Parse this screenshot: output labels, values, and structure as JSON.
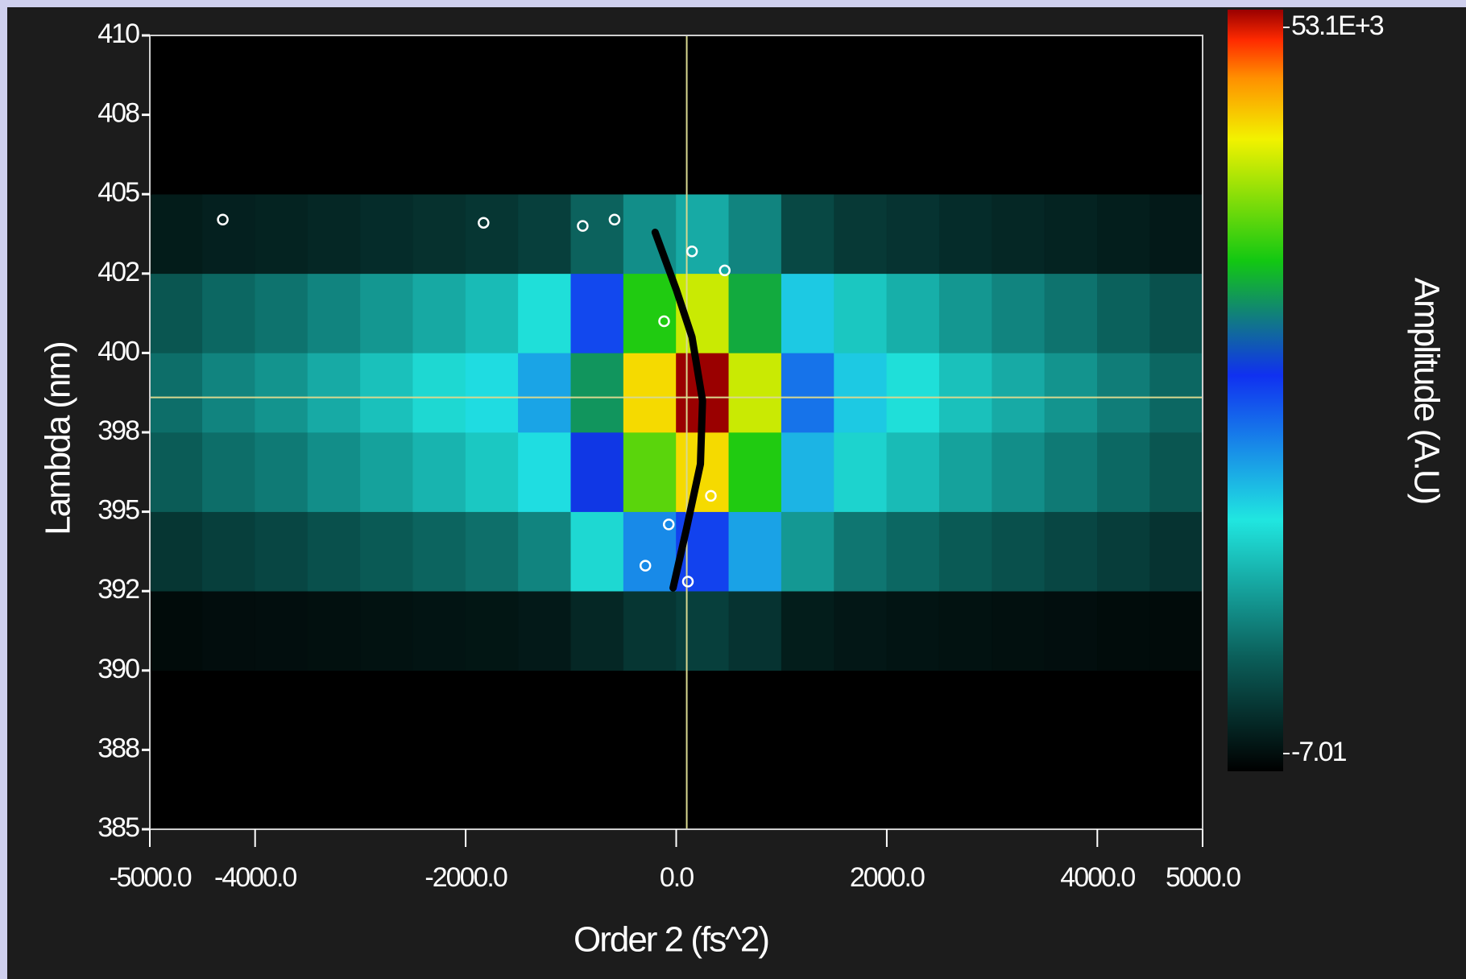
{
  "chart_data": {
    "type": "heatmap",
    "x_label": "Order 2 (fs^2)",
    "y_label": "Lambda (nm)",
    "colorbar_label": "Amplitude (A.U)",
    "xlim": [
      -5000,
      5000
    ],
    "ylim": [
      385,
      410
    ],
    "xticks": [
      {
        "value": -5000,
        "label": "-5000.0"
      },
      {
        "value": -4000,
        "label": "-4000.0"
      },
      {
        "value": -2000,
        "label": "-2000.0"
      },
      {
        "value": 0,
        "label": "0.0"
      },
      {
        "value": 2000,
        "label": "2000.0"
      },
      {
        "value": 4000,
        "label": "4000.0"
      },
      {
        "value": 5000,
        "label": "5000.0"
      }
    ],
    "yticks": [
      385,
      {
        "value": 387.5,
        "label": "388"
      },
      390,
      {
        "value": 392.5,
        "label": "392"
      },
      395,
      {
        "value": 397.5,
        "label": "398"
      },
      400,
      {
        "value": 402.5,
        "label": "402"
      },
      405,
      {
        "value": 407.5,
        "label": "408"
      },
      410
    ],
    "zlim": [
      -7.01,
      53100
    ],
    "cticks": [
      -7.01,
      {
        "value": 53100,
        "label": "53.1E+3"
      }
    ],
    "colormap": [
      [
        0,
        "#000000"
      ],
      [
        0.15,
        "#0b5f5a"
      ],
      [
        0.33,
        "#20e6e0"
      ],
      [
        0.52,
        "#1030f0"
      ],
      [
        0.67,
        "#12c812"
      ],
      [
        0.83,
        "#f2f200"
      ],
      [
        0.91,
        "#ff9000"
      ],
      [
        0.96,
        "#ff2a00"
      ],
      [
        1,
        "#9a0000"
      ]
    ],
    "x_edges": [
      -5000,
      -4500,
      -4000,
      -3500,
      -3000,
      -2500,
      -2000,
      -1500,
      -1000,
      -500,
      0,
      500,
      1000,
      1500,
      2000,
      2500,
      3000,
      3500,
      4000,
      4500,
      5000
    ],
    "y_edges": [
      385,
      387.5,
      390,
      392.5,
      395,
      397.5,
      400,
      402.5,
      405,
      407.5,
      410
    ],
    "z": [
      [
        0,
        0,
        0,
        0,
        0,
        0,
        0,
        0,
        0,
        0,
        0,
        0,
        0,
        0,
        0,
        0,
        0,
        0,
        0,
        0
      ],
      [
        0,
        0,
        0,
        0,
        0,
        0,
        0,
        0,
        0,
        0,
        0,
        0,
        0,
        0,
        0,
        0,
        0,
        0,
        0,
        0
      ],
      [
        900,
        1100,
        1200,
        1300,
        1500,
        1700,
        1800,
        2100,
        3300,
        4500,
        5300,
        4300,
        2400,
        1900,
        1700,
        1500,
        1300,
        1200,
        1000,
        900
      ],
      [
        4500,
        5300,
        5900,
        6700,
        7500,
        8300,
        9100,
        10600,
        16500,
        22600,
        26600,
        21300,
        12000,
        9600,
        8500,
        7500,
        6700,
        5900,
        5100,
        4300
      ],
      [
        7700,
        9000,
        9900,
        11300,
        12700,
        14000,
        15400,
        18000,
        28000,
        38300,
        45100,
        36100,
        20300,
        16200,
        14500,
        12700,
        11300,
        9900,
        8600,
        7200
      ],
      [
        9000,
        10600,
        11700,
        13300,
        14900,
        16500,
        18100,
        21200,
        32900,
        45100,
        53100,
        42500,
        23900,
        19100,
        17000,
        14900,
        13300,
        11700,
        10100,
        8500
      ],
      [
        7200,
        8500,
        9400,
        10600,
        11900,
        13200,
        14500,
        17000,
        26300,
        36100,
        42500,
        34000,
        19100,
        15300,
        13600,
        11900,
        10600,
        9400,
        8100,
        6800
      ],
      [
        2300,
        2700,
        2900,
        3300,
        3700,
        4100,
        4500,
        5300,
        8200,
        11300,
        13300,
        10600,
        6000,
        4800,
        4300,
        3700,
        3300,
        2900,
        2500,
        2100
      ],
      [
        0,
        0,
        0,
        0,
        0,
        0,
        0,
        0,
        0,
        0,
        0,
        0,
        0,
        0,
        0,
        0,
        0,
        0,
        0,
        0
      ],
      [
        0,
        0,
        0,
        0,
        0,
        0,
        0,
        0,
        0,
        0,
        0,
        0,
        0,
        0,
        0,
        0,
        0,
        0,
        0,
        0
      ]
    ],
    "curve": {
      "x": [
        -200,
        0,
        150,
        250,
        230,
        100,
        -30
      ],
      "y": [
        403.8,
        402,
        400.5,
        398.5,
        396.5,
        394.5,
        392.6
      ],
      "color": "#000000"
    },
    "points": {
      "x": [
        -4307,
        -1830,
        -888,
        -586,
        150,
        461,
        -115,
        329,
        -71,
        -293,
        111
      ],
      "y": [
        404.2,
        404.1,
        404.0,
        404.2,
        403.2,
        402.6,
        401.0,
        395.5,
        394.6,
        393.3,
        392.8
      ],
      "color": "#ffffff"
    },
    "cursor": {
      "x": 100,
      "y": 398.6,
      "color": "#d8d890"
    }
  }
}
